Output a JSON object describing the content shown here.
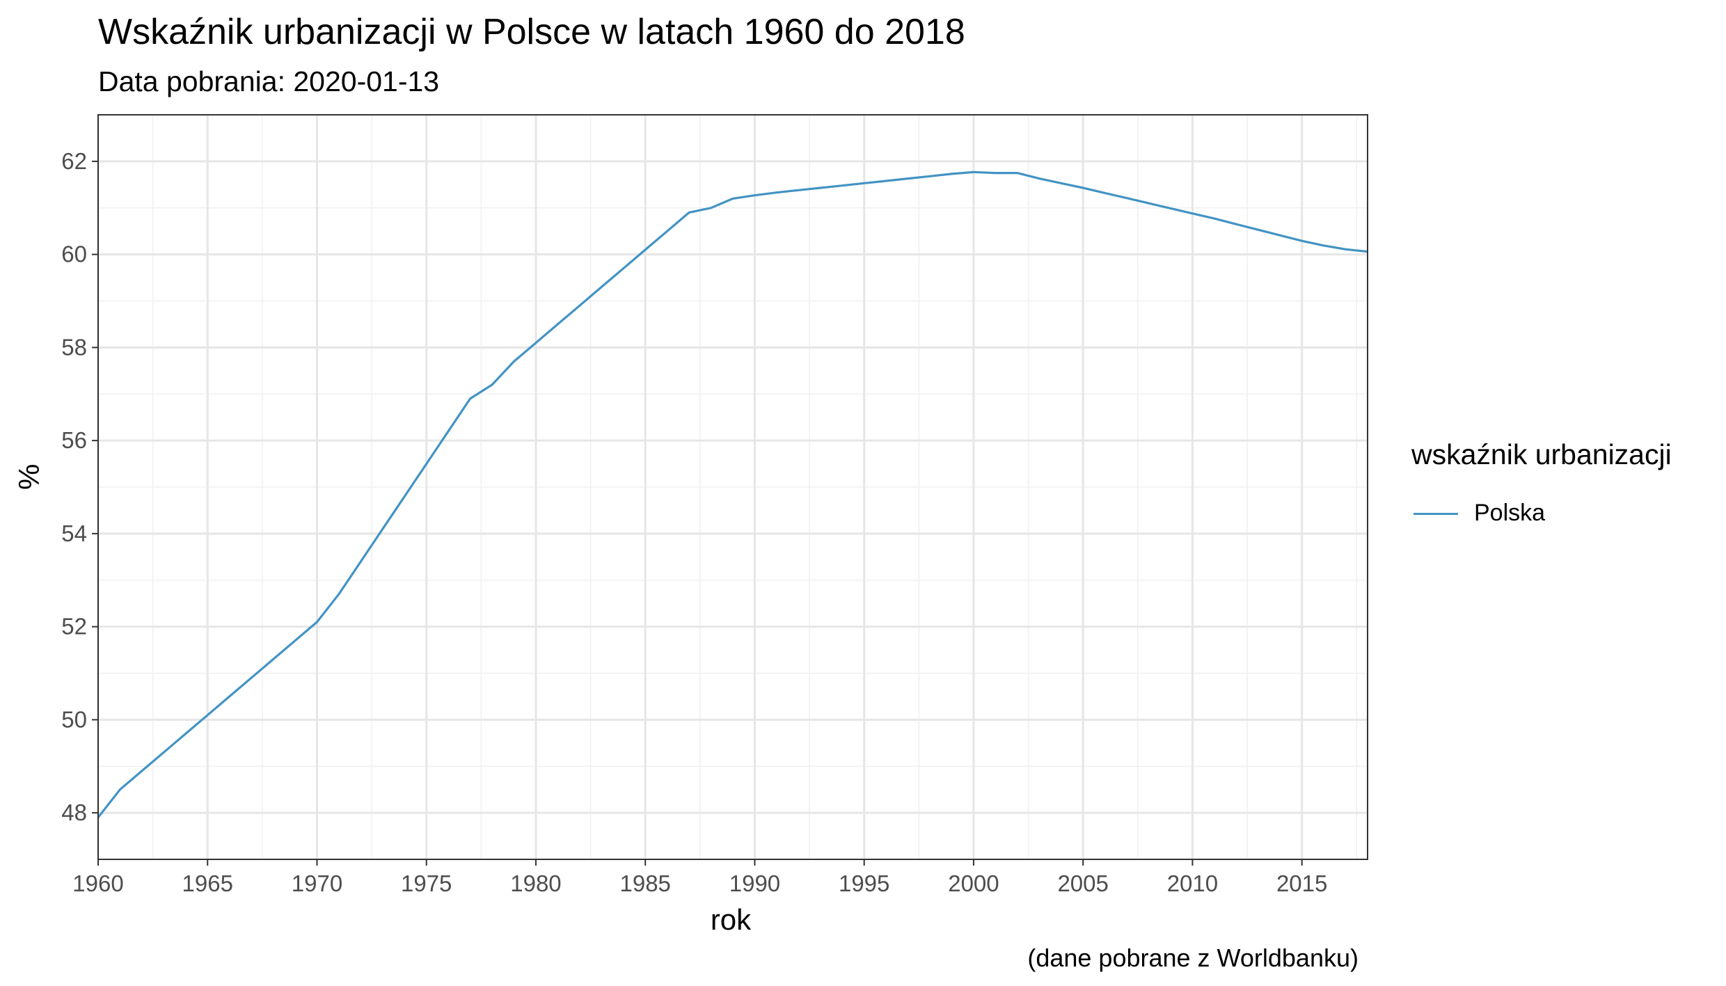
{
  "chart_data": {
    "type": "line",
    "title": "Wskaźnik urbanizacji w Polsce w latach 1960 do 2018",
    "subtitle": "Data pobrania: 2020-01-13",
    "caption": "(dane pobrane z Worldbanku)",
    "xlabel": "rok",
    "ylabel": "%",
    "xlim": [
      1960,
      2018
    ],
    "ylim": [
      47,
      63
    ],
    "x_ticks": [
      1960,
      1965,
      1970,
      1975,
      1980,
      1985,
      1990,
      1995,
      2000,
      2005,
      2010,
      2015
    ],
    "y_ticks": [
      48,
      50,
      52,
      54,
      56,
      58,
      60,
      62
    ],
    "grid": true,
    "legend": {
      "title": "wskaźnik urbanizacji",
      "position": "right"
    },
    "series": [
      {
        "name": "Polska",
        "color": "#4393c3",
        "x": [
          1960,
          1961,
          1962,
          1963,
          1964,
          1965,
          1966,
          1967,
          1968,
          1969,
          1970,
          1971,
          1972,
          1973,
          1974,
          1975,
          1976,
          1977,
          1978,
          1979,
          1980,
          1981,
          1982,
          1983,
          1984,
          1985,
          1986,
          1987,
          1988,
          1989,
          1990,
          1991,
          1992,
          1993,
          1994,
          1995,
          1996,
          1997,
          1998,
          1999,
          2000,
          2001,
          2002,
          2003,
          2004,
          2005,
          2006,
          2007,
          2008,
          2009,
          2010,
          2011,
          2012,
          2013,
          2014,
          2015,
          2016,
          2017,
          2018
        ],
        "values": [
          47.9,
          48.5,
          48.9,
          49.3,
          49.7,
          50.1,
          50.5,
          50.9,
          51.3,
          51.7,
          52.1,
          52.7,
          53.4,
          54.1,
          54.8,
          55.5,
          56.2,
          56.9,
          57.2,
          57.7,
          58.1,
          58.5,
          58.9,
          59.3,
          59.7,
          60.1,
          60.5,
          60.9,
          61.0,
          61.2,
          61.27,
          61.33,
          61.38,
          61.43,
          61.48,
          61.53,
          61.58,
          61.63,
          61.68,
          61.73,
          61.77,
          61.75,
          61.75,
          61.63,
          61.53,
          61.43,
          61.32,
          61.21,
          61.1,
          60.99,
          60.88,
          60.77,
          60.65,
          60.53,
          60.41,
          60.29,
          60.19,
          60.11,
          60.06
        ]
      }
    ]
  }
}
